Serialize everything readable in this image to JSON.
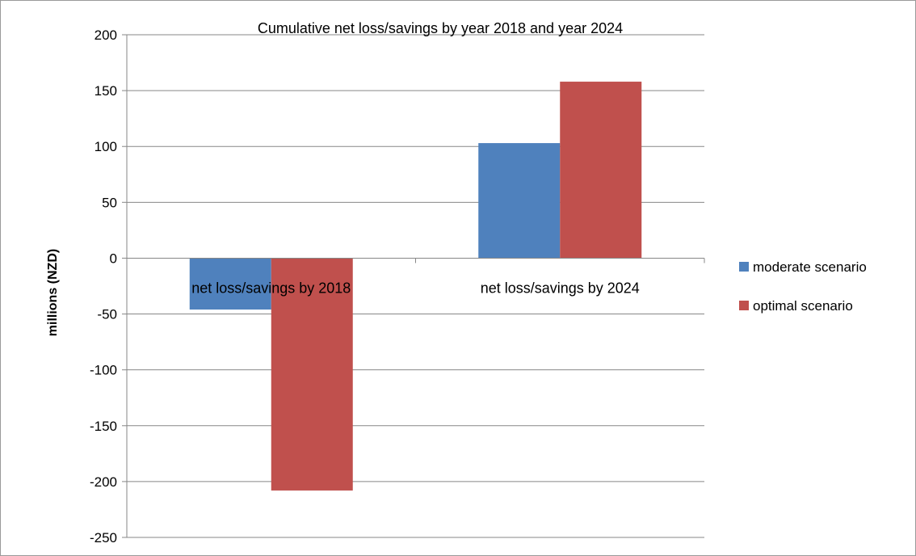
{
  "chart_data": {
    "type": "bar",
    "title": "Cumulative net loss/savings by year 2018 and year 2024",
    "xlabel": "",
    "ylabel": "millions (NZD)",
    "categories": [
      "net loss/savings by 2018",
      "net loss/savings by 2024"
    ],
    "series": [
      {
        "name": "moderate scenario",
        "values": [
          -46,
          103
        ],
        "color": "#4F81BD"
      },
      {
        "name": "optimal scenario",
        "values": [
          -208,
          158
        ],
        "color": "#C0504D"
      }
    ],
    "ylim": [
      -250,
      200
    ],
    "yticks": [
      200,
      150,
      100,
      50,
      0,
      -50,
      -100,
      -150,
      -200,
      -250
    ],
    "grid": true,
    "legend_position": "right"
  }
}
